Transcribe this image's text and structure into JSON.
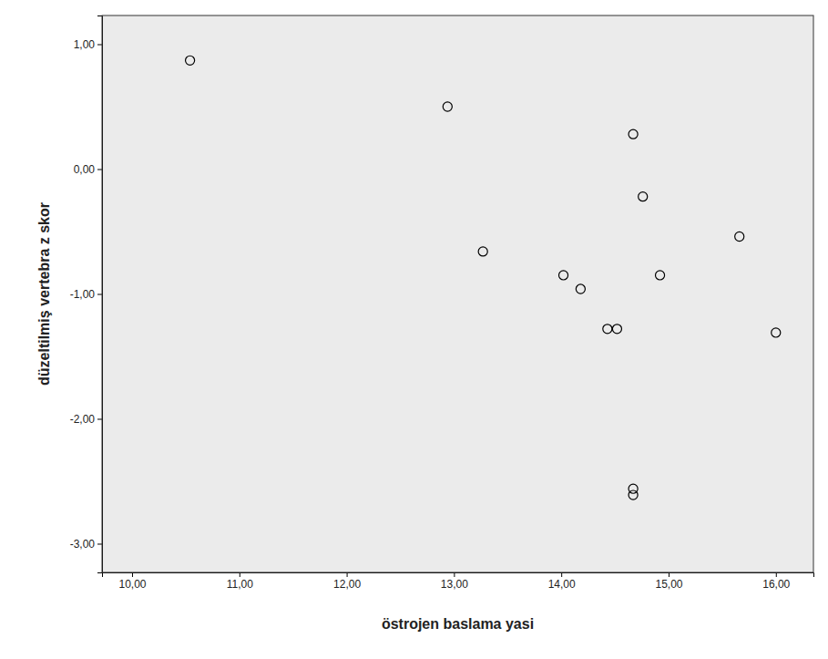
{
  "chart_data": {
    "type": "scatter",
    "x_label": "östrojen baslama yasi",
    "y_label": "düzeltilmiş vertebra z skor",
    "x": [
      10.54,
      12.94,
      13.27,
      14.02,
      14.18,
      14.43,
      14.52,
      14.67,
      14.76,
      14.92,
      15.66,
      16.0,
      14.67,
      14.67
    ],
    "values": [
      0.87,
      0.5,
      -0.66,
      -0.85,
      -0.96,
      -1.28,
      -1.28,
      0.28,
      -0.22,
      -0.85,
      -0.54,
      -1.31,
      -2.56,
      -2.61
    ],
    "xlim": [
      9.72,
      16.35
    ],
    "ylim": [
      -3.23,
      1.23
    ],
    "xticks": [
      {
        "value": 10,
        "label": "10,00"
      },
      {
        "value": 11,
        "label": "11,00"
      },
      {
        "value": 12,
        "label": "12,00"
      },
      {
        "value": 13,
        "label": "13,00"
      },
      {
        "value": 14,
        "label": "14,00"
      },
      {
        "value": 15,
        "label": "15,00"
      },
      {
        "value": 16,
        "label": "16,00"
      }
    ],
    "yticks": [
      {
        "value": -3,
        "label": "-3,00"
      },
      {
        "value": -2,
        "label": "-2,00"
      },
      {
        "value": -1,
        "label": "-1,00"
      },
      {
        "value": 0,
        "label": "0,00"
      },
      {
        "value": 1,
        "label": "1,00"
      }
    ],
    "marker": "circle",
    "color": "#000000"
  }
}
